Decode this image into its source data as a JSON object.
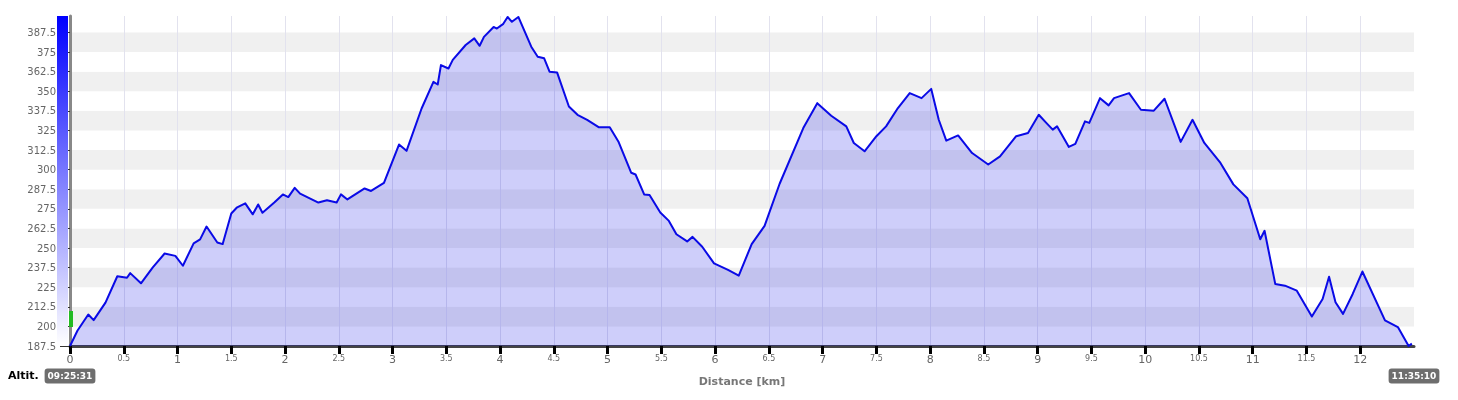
{
  "chart_data": {
    "type": "area",
    "xlabel": "Distance [km]",
    "ylabel": "Altit.",
    "annotations": [
      "09:25:31",
      "11:35:10"
    ],
    "xlim": [
      0,
      12.5
    ],
    "ylim": [
      187.5,
      398
    ],
    "xticks": [
      0,
      0.5,
      1,
      1.5,
      2,
      2.5,
      3,
      3.5,
      4,
      4.5,
      5,
      5.5,
      6,
      6.5,
      7,
      7.5,
      8,
      8.5,
      9,
      9.5,
      10,
      10.5,
      11,
      11.5,
      12
    ],
    "yticks": [
      187.5,
      200,
      212.5,
      225,
      237.5,
      250,
      262.5,
      275,
      287.5,
      300,
      312.5,
      325,
      337.5,
      350,
      362.5,
      375,
      387.5
    ],
    "grid": true,
    "marker": "none",
    "line_style": "solid",
    "series": [
      {
        "color": "#0a0ae6",
        "x": [
          0,
          0.07,
          0.17,
          0.22,
          0.33,
          0.44,
          0.53,
          0.56,
          0.66,
          0.77,
          0.88,
          0.98,
          1.05,
          1.15,
          1.21,
          1.27,
          1.37,
          1.42,
          1.5,
          1.55,
          1.63,
          1.7,
          1.75,
          1.79,
          1.9,
          1.98,
          2.03,
          2.09,
          2.14,
          2.31,
          2.39,
          2.48,
          2.52,
          2.58,
          2.74,
          2.8,
          2.92,
          3.06,
          3.13,
          3.27,
          3.38,
          3.42,
          3.45,
          3.52,
          3.56,
          3.68,
          3.76,
          3.81,
          3.85,
          3.94,
          3.97,
          4.03,
          4.07,
          4.11,
          4.17,
          4.29,
          4.35,
          4.41,
          4.46,
          4.53,
          4.64,
          4.72,
          4.81,
          4.92,
          5.02,
          5.1,
          5.22,
          5.26,
          5.34,
          5.39,
          5.49,
          5.57,
          5.64,
          5.74,
          5.79,
          5.88,
          5.99,
          6.12,
          6.22,
          6.34,
          6.46,
          6.6,
          6.82,
          6.95,
          7.08,
          7.22,
          7.29,
          7.39,
          7.5,
          7.59,
          7.7,
          7.81,
          7.92,
          8.01,
          8.08,
          8.15,
          8.26,
          8.39,
          8.54,
          8.65,
          8.8,
          8.91,
          9.01,
          9.08,
          9.14,
          9.18,
          9.29,
          9.35,
          9.44,
          9.48,
          9.58,
          9.66,
          9.71,
          9.85,
          9.96,
          10.08,
          10.18,
          10.33,
          10.44,
          10.55,
          10.7,
          10.82,
          10.95,
          11.07,
          11.11,
          11.21,
          11.3,
          11.41,
          11.55,
          11.65,
          11.71,
          11.77,
          11.84,
          11.93,
          12.02,
          12.23,
          12.35,
          12.45,
          12.48
        ],
        "values": [
          187.5,
          197.4,
          207.6,
          204,
          215.2,
          232,
          231,
          234,
          227.5,
          237.7,
          246.5,
          245,
          238.7,
          253,
          255.5,
          263.7,
          253.5,
          252.5,
          272,
          275.7,
          278.5,
          271.5,
          277.8,
          272.5,
          279,
          284.2,
          282.5,
          288.4,
          284.7,
          279,
          280.5,
          279,
          284.2,
          281,
          288,
          286.4,
          291.6,
          316,
          312,
          339,
          356,
          354.3,
          366.7,
          364.5,
          370,
          379.5,
          383.7,
          379,
          384.7,
          391,
          390,
          393,
          397.4,
          394.3,
          397.4,
          378.4,
          372,
          371,
          362.5,
          362,
          340.3,
          335,
          331.8,
          327,
          327,
          318,
          298,
          296.9,
          284.2,
          283.8,
          272.6,
          267.3,
          258.8,
          254.2,
          257.1,
          250.8,
          240.2,
          236,
          232.4,
          252.5,
          264.1,
          291,
          326.5,
          342.4,
          334.4,
          327.6,
          317,
          311.7,
          321.3,
          327.6,
          339.3,
          348.8,
          345.6,
          351.5,
          331.8,
          318.5,
          321.8,
          310.6,
          303.3,
          308.5,
          321.3,
          323.4,
          335,
          329.8,
          325.5,
          327.6,
          314.5,
          316.4,
          330.8,
          329.8,
          345.6,
          341,
          345.6,
          348.8,
          338.2,
          337.6,
          345.2,
          317.7,
          331.8,
          317,
          304.3,
          290.6,
          281.7,
          255.6,
          261,
          227,
          226,
          222.8,
          206.3,
          217.5,
          231.7,
          215.4,
          208,
          220.7,
          235,
          203.8,
          199.6,
          187.5,
          189
        ]
      }
    ]
  }
}
